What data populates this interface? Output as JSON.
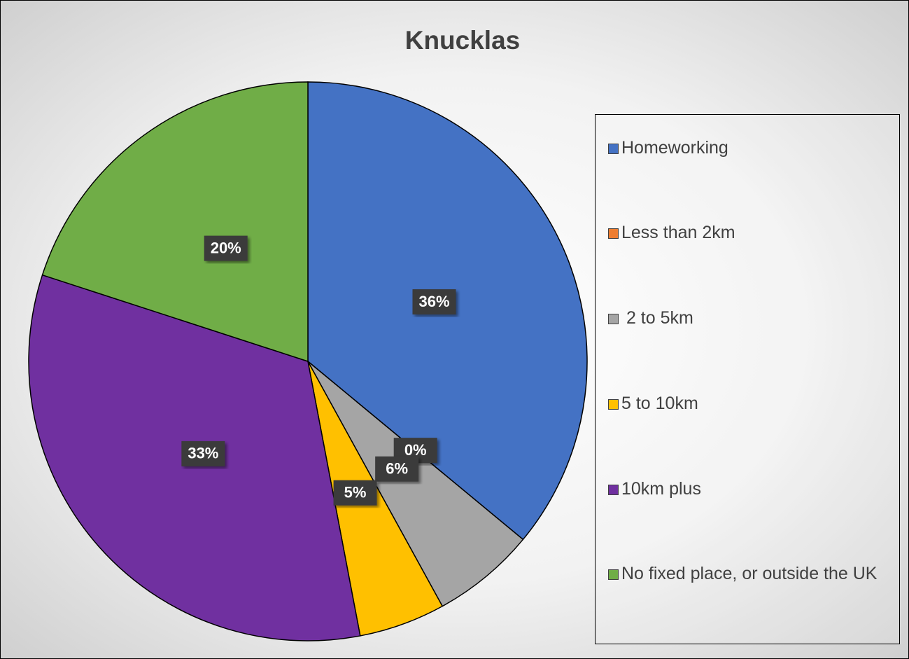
{
  "chart_data": {
    "type": "pie",
    "title": "Knucklas",
    "categories": [
      "Homeworking",
      "Less than 2km",
      " 2 to 5km",
      "5 to 10km",
      "10km plus",
      "No fixed place, or outside the UK"
    ],
    "values": [
      36,
      0,
      6,
      5,
      33,
      20
    ],
    "value_labels": [
      "36%",
      "0%",
      "6%",
      "5%",
      "33%",
      "20%"
    ],
    "colors": [
      "#4472c4",
      "#ed7d31",
      "#a5a5a5",
      "#ffc000",
      "#7030a0",
      "#70ad47"
    ],
    "legend": "right"
  }
}
